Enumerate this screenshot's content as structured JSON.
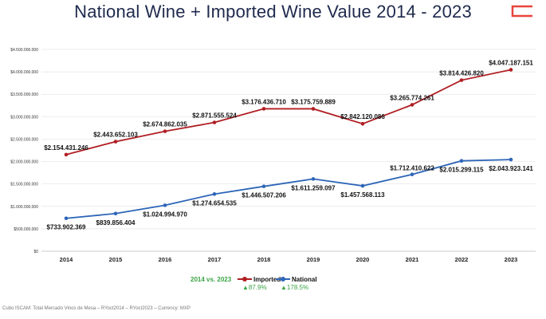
{
  "title": "National Wine + Imported Wine Value 2014 - 2023",
  "footer": "Cubo ISCAM: Total Mercado Vinos de Mesa – RYoct2014 – RYoct2023 – Currency: MXP",
  "comparison": {
    "label": "2014 vs. 2023",
    "imported_growth": "▲87.9%",
    "national_growth": "▲178.5%"
  },
  "colors": {
    "imported": "#b01e23",
    "national": "#2e66b8",
    "accent": "#e8453c",
    "growth": "#3aa445"
  },
  "chart_data": {
    "type": "line",
    "categories": [
      "2014",
      "2015",
      "2016",
      "2017",
      "2018",
      "2019",
      "2020",
      "2021",
      "2022",
      "2023"
    ],
    "y_ticks": [
      "$0",
      "$500.000.000",
      "$1.000.000.000",
      "$1.500.000.000",
      "$2.000.000.000",
      "$2.500.000.000",
      "$3.000.000.000",
      "$3.500.000.000",
      "$4.000.000.000",
      "$4.500.000.000"
    ],
    "ylim": [
      0,
      4500000000
    ],
    "grid": true,
    "legend": "bottom",
    "series": [
      {
        "name": "Imported",
        "color": "#b01e23",
        "values": [
          2154431246,
          2443652103,
          2674862035,
          2871555524,
          3176436710,
          3175759889,
          2842120086,
          3265774261,
          3814426820,
          4047187151
        ],
        "labels": [
          "$2.154.431.246",
          "$2.443.652.103",
          "$2.674.862.035",
          "$2.871.555.524",
          "$3.176.436.710",
          "$3.175.759.889",
          "$2.842.120.086",
          "$3.265.774.261",
          "$3.814.426.820",
          "$4.047.187.151"
        ]
      },
      {
        "name": "National",
        "color": "#2e66b8",
        "values": [
          733902369,
          839856404,
          1024994970,
          1274654535,
          1446507206,
          1611259097,
          1457568113,
          1712410622,
          2015299115,
          2043923141
        ],
        "labels": [
          "$733.902.369",
          "$839.856.404",
          "$1.024.994.970",
          "$1.274.654.535",
          "$1.446.507.206",
          "$1.611.259.097",
          "$1.457.568.113",
          "$1.712.410.622",
          "$2.015.299.115",
          "$2.043.923.141"
        ]
      }
    ]
  }
}
